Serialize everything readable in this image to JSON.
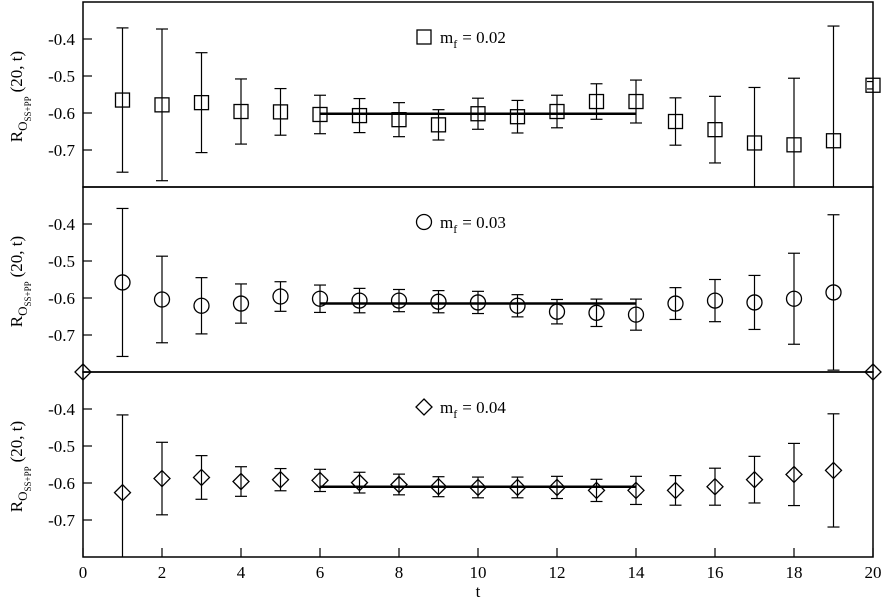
{
  "chart_data": [
    {
      "type": "scatter",
      "ylabel": {
        "main": "R",
        "sub": "O",
        "subsub": "SS+PP",
        "rest": "(20, t)"
      },
      "xlim": [
        0,
        20
      ],
      "ylim": [
        -0.8,
        -0.3
      ],
      "yticks": [
        -0.7,
        -0.6,
        -0.5,
        -0.4
      ],
      "x": [
        1,
        2,
        3,
        4,
        5,
        6,
        7,
        8,
        9,
        10,
        11,
        12,
        13,
        14,
        15,
        16,
        17,
        18,
        19,
        20
      ],
      "series": [
        {
          "name": "m",
          "name_sub": "f",
          "name_rest": "= 0.02",
          "marker": "square",
          "color": "#000000",
          "values": [
            -0.565,
            -0.578,
            -0.572,
            -0.596,
            -0.597,
            -0.604,
            -0.607,
            -0.618,
            -0.632,
            -0.602,
            -0.61,
            -0.596,
            -0.569,
            -0.569,
            -0.623,
            -0.645,
            -0.681,
            -0.686,
            -0.675,
            -0.525
          ],
          "errors": [
            0.195,
            0.205,
            0.135,
            0.088,
            0.063,
            0.052,
            0.046,
            0.046,
            0.041,
            0.042,
            0.044,
            0.044,
            0.048,
            0.058,
            0.064,
            0.09,
            0.15,
            0.18,
            0.31,
            0.01
          ]
        }
      ],
      "fit": {
        "x": [
          6,
          14
        ],
        "value": -0.602
      }
    },
    {
      "type": "scatter",
      "ylabel": {
        "main": "R",
        "sub": "O",
        "subsub": "SS+PP",
        "rest": "(20, t)"
      },
      "xlim": [
        0,
        20
      ],
      "ylim": [
        -0.8,
        -0.3
      ],
      "yticks": [
        -0.7,
        -0.6,
        -0.5,
        -0.4
      ],
      "x": [
        1,
        2,
        3,
        4,
        5,
        6,
        7,
        8,
        9,
        10,
        11,
        12,
        13,
        14,
        15,
        16,
        17,
        18,
        19
      ],
      "series": [
        {
          "name": "m",
          "name_sub": "f",
          "name_rest": "= 0.03",
          "marker": "circle",
          "color": "#000000",
          "values": [
            -0.558,
            -0.604,
            -0.621,
            -0.615,
            -0.596,
            -0.602,
            -0.607,
            -0.607,
            -0.61,
            -0.612,
            -0.621,
            -0.637,
            -0.64,
            -0.645,
            -0.615,
            -0.607,
            -0.612,
            -0.602,
            -0.585
          ],
          "errors": [
            0.2,
            0.117,
            0.076,
            0.053,
            0.04,
            0.037,
            0.033,
            0.03,
            0.03,
            0.03,
            0.03,
            0.033,
            0.037,
            0.042,
            0.043,
            0.057,
            0.073,
            0.123,
            0.21
          ]
        }
      ],
      "fit": {
        "x": [
          6,
          14
        ],
        "value": -0.615
      }
    },
    {
      "type": "scatter",
      "ylabel": {
        "main": "R",
        "sub": "O",
        "subsub": "SS+PP",
        "rest": "(20, t)"
      },
      "xlabel": "t",
      "xlim": [
        0,
        20
      ],
      "xticks": [
        0,
        2,
        4,
        6,
        8,
        10,
        12,
        14,
        16,
        18,
        20
      ],
      "ylim": [
        -0.8,
        -0.3
      ],
      "yticks": [
        -0.7,
        -0.6,
        -0.5,
        -0.4
      ],
      "x": [
        0,
        1,
        2,
        3,
        4,
        5,
        6,
        7,
        8,
        9,
        10,
        11,
        12,
        13,
        14,
        15,
        16,
        17,
        18,
        19,
        20
      ],
      "series": [
        {
          "name": "m",
          "name_sub": "f",
          "name_rest": "= 0.04",
          "marker": "diamond",
          "color": "#000000",
          "values": [
            -0.3,
            -0.626,
            -0.588,
            -0.585,
            -0.596,
            -0.591,
            -0.593,
            -0.599,
            -0.604,
            -0.61,
            -0.612,
            -0.612,
            -0.612,
            -0.62,
            -0.62,
            -0.62,
            -0.61,
            -0.591,
            -0.577,
            -0.566,
            -0.3
          ],
          "errors": [
            0,
            0.21,
            0.098,
            0.059,
            0.04,
            0.03,
            0.03,
            0.028,
            0.028,
            0.027,
            0.028,
            0.028,
            0.03,
            0.03,
            0.038,
            0.04,
            0.05,
            0.063,
            0.084,
            0.153,
            0
          ]
        }
      ],
      "fit": {
        "x": [
          6,
          14
        ],
        "value": -0.61
      }
    }
  ]
}
